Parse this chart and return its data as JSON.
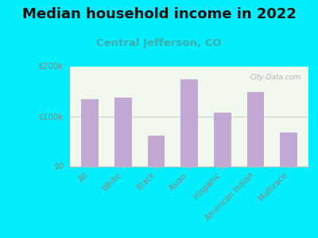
{
  "title": "Median household income in 2022",
  "subtitle": "Central Jefferson, CO",
  "categories": [
    "All",
    "White",
    "Black",
    "Asian",
    "Hispanic",
    "American Indian",
    "Multirace"
  ],
  "values": [
    135000,
    138000,
    62000,
    175000,
    108000,
    150000,
    68000
  ],
  "bar_color": "#c4a8d4",
  "background_color": "#00eeff",
  "ylim": [
    0,
    200000
  ],
  "ytick_labels": [
    "$0",
    "$100k",
    "$200k"
  ],
  "watermark": "City-Data.com",
  "title_fontsize": 13,
  "subtitle_fontsize": 9.5,
  "tick_color": "#888880",
  "title_color": "#111111",
  "subtitle_color": "#3aafaf"
}
